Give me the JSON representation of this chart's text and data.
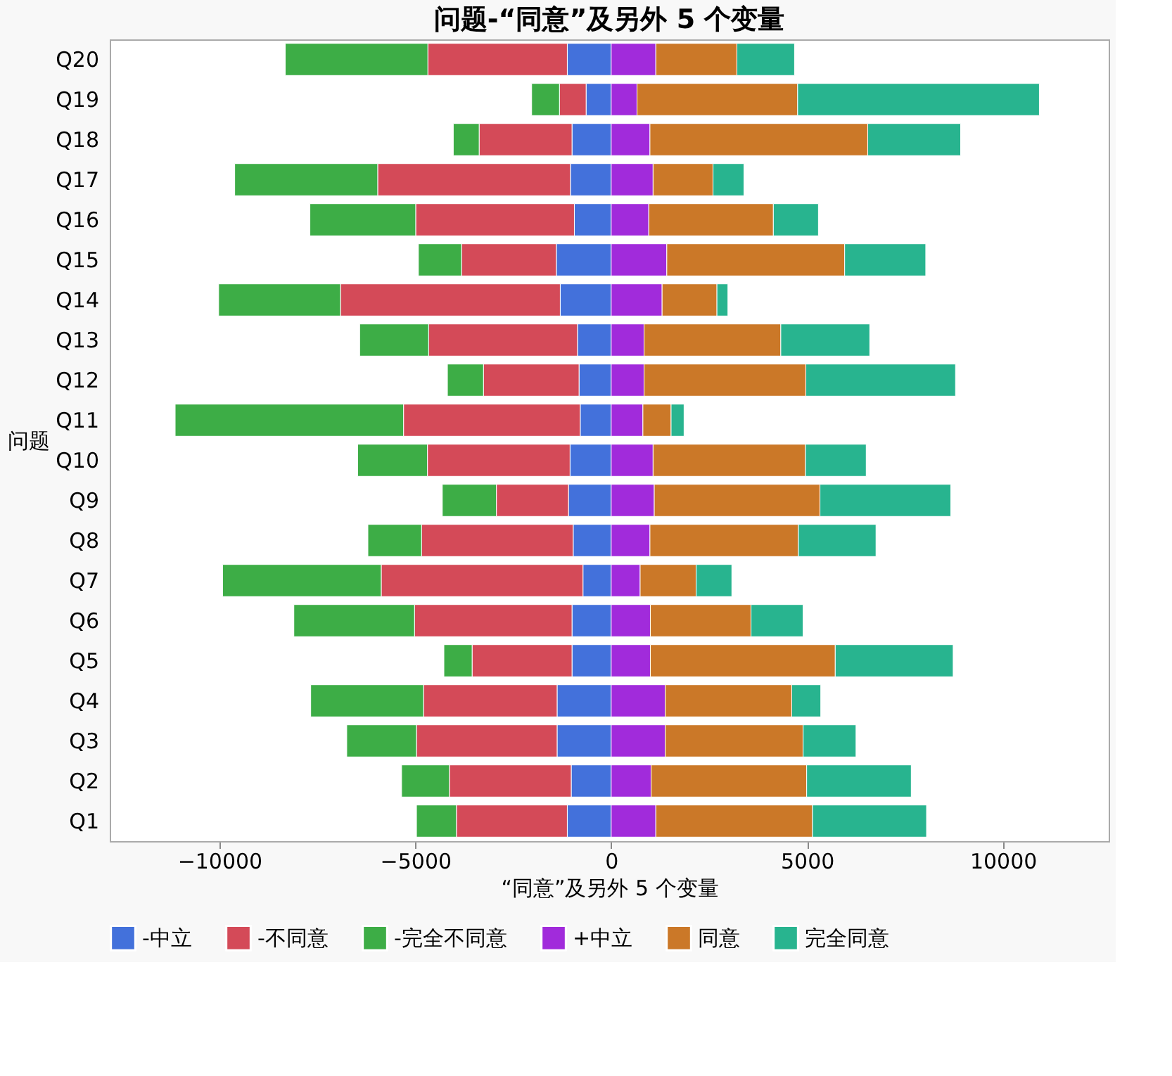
{
  "chart_data": {
    "type": "bar",
    "orientation": "horizontal",
    "stacked": true,
    "title": "问题-“同意”及另外 5 个变量",
    "xlabel": "“同意”及另外 5 个变量",
    "ylabel": "问题",
    "categories": [
      "Q20",
      "Q19",
      "Q18",
      "Q17",
      "Q16",
      "Q15",
      "Q14",
      "Q13",
      "Q12",
      "Q11",
      "Q10",
      "Q9",
      "Q8",
      "Q7",
      "Q6",
      "Q5",
      "Q4",
      "Q3",
      "Q2",
      "Q1"
    ],
    "series": [
      {
        "name": "-中立",
        "color": "#4371db",
        "values": [
          -1120,
          -640,
          -1000,
          -1040,
          -940,
          -1400,
          -1300,
          -860,
          -820,
          -790,
          -1050,
          -1090,
          -970,
          -720,
          -1000,
          -1000,
          -1380,
          -1380,
          -1020,
          -1120
        ]
      },
      {
        "name": "-不同意",
        "color": "#d44a58",
        "values": [
          -3560,
          -680,
          -2370,
          -4920,
          -4050,
          -2420,
          -5610,
          -3800,
          -2440,
          -4510,
          -3640,
          -1840,
          -3870,
          -5150,
          -4020,
          -2550,
          -3410,
          -3590,
          -3110,
          -2830
        ]
      },
      {
        "name": "-完全不同意",
        "color": "#3dad46",
        "values": [
          -3640,
          -710,
          -660,
          -3650,
          -2700,
          -1100,
          -3110,
          -1760,
          -920,
          -5830,
          -1780,
          -1380,
          -1370,
          -4050,
          -3080,
          -720,
          -2880,
          -1780,
          -1220,
          -1020
        ]
      },
      {
        "name": "+中立",
        "color": "#a12bdb",
        "values": [
          1140,
          660,
          990,
          1070,
          960,
          1420,
          1300,
          840,
          840,
          810,
          1070,
          1100,
          990,
          740,
          1000,
          1000,
          1380,
          1380,
          1020,
          1140
        ]
      },
      {
        "name": "同意",
        "color": "#cb7828",
        "values": [
          2070,
          4100,
          5560,
          1530,
          3180,
          4540,
          1400,
          3490,
          4130,
          720,
          3890,
          4230,
          3790,
          1430,
          2570,
          4720,
          3230,
          3520,
          3970,
          4000
        ]
      },
      {
        "name": "完全同意",
        "color": "#28b48f",
        "values": [
          1470,
          6170,
          2370,
          790,
          1150,
          2070,
          280,
          2270,
          3820,
          330,
          1550,
          3340,
          1980,
          910,
          1330,
          3010,
          740,
          1350,
          2670,
          2910
        ]
      }
    ],
    "xlim": [
      -12800,
      12700
    ],
    "xticks": [
      -10000,
      -5000,
      0,
      5000,
      10000
    ],
    "grid": false,
    "legend": "bottom"
  }
}
